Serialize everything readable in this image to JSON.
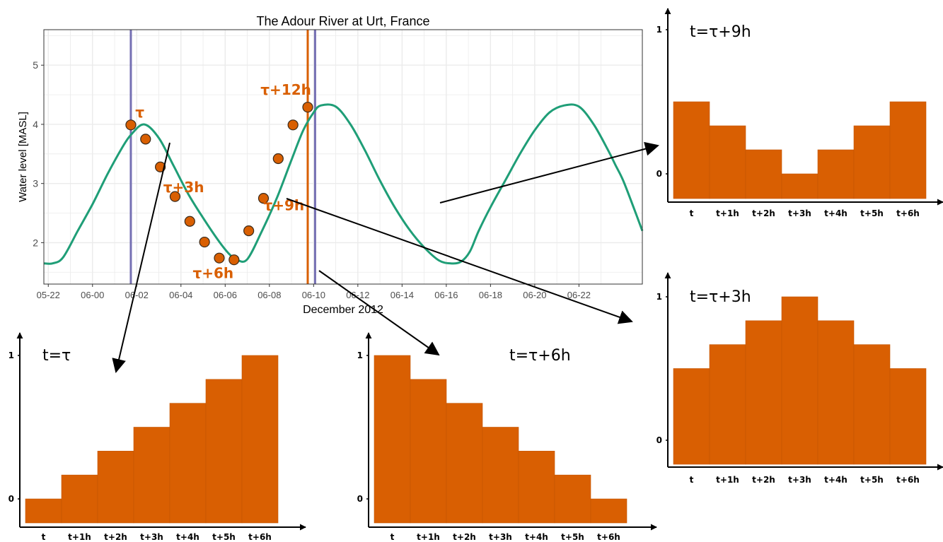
{
  "colors": {
    "line": "#1f9e77",
    "marker": "#d95f02",
    "bar": "#d95f02",
    "vline_blue": "#7570b3",
    "vline_orange": "#d95f02",
    "grid": "#ebebeb",
    "axis": "#000000"
  },
  "chart_data": [
    {
      "type": "line",
      "title": "The Adour River at Urt, France",
      "xlabel": "December 2012",
      "ylabel": "Water level [MASL]",
      "ylim": [
        1.3,
        5.6
      ],
      "yticks": [
        2,
        3,
        4,
        5
      ],
      "xticks": [
        "05-22",
        "06-00",
        "06-02",
        "06-04",
        "06-06",
        "06-08",
        "06-10",
        "06-12",
        "06-14",
        "06-16",
        "06-18",
        "06-20",
        "06-22"
      ],
      "xlim_hours": [
        -3.3,
        37.3
      ],
      "grid": true,
      "series": [
        {
          "kind": "line",
          "x": [
            -3.3,
            -2.7,
            -2,
            -1,
            0,
            1,
            2,
            2.6,
            3.5,
            4.5,
            5.5,
            6.5,
            7.5,
            8.5,
            9.3,
            9.8,
            10.5,
            11.5,
            12.5,
            13.5,
            14.3,
            15,
            15.5,
            16.5,
            17.5,
            18.5,
            19.5,
            20.5,
            21.5,
            22.5,
            23.5,
            24.3,
            25,
            25.6,
            26.2,
            27,
            28,
            29,
            30,
            31,
            32,
            33,
            34,
            35,
            35.5,
            36,
            36.7,
            37.3
          ],
          "y": [
            1.65,
            1.65,
            1.75,
            2.2,
            2.65,
            3.15,
            3.6,
            3.82,
            4.0,
            3.77,
            3.3,
            2.82,
            2.42,
            2.05,
            1.8,
            1.71,
            1.72,
            2.2,
            2.75,
            3.4,
            3.9,
            4.2,
            4.32,
            4.3,
            4.0,
            3.55,
            3.05,
            2.6,
            2.22,
            1.92,
            1.7,
            1.65,
            1.68,
            1.85,
            2.2,
            2.6,
            3.05,
            3.5,
            3.9,
            4.2,
            4.32,
            4.3,
            4.0,
            3.55,
            3.3,
            3.05,
            2.6,
            2.2
          ]
        },
        {
          "kind": "points",
          "x": [
            2.6,
            3.6,
            4.6,
            5.6,
            6.6,
            7.6,
            8.6,
            9.6,
            10.6,
            11.6,
            12.6,
            13.6,
            14.6
          ],
          "y": [
            3.99,
            3.75,
            3.28,
            2.78,
            2.36,
            2.01,
            1.74,
            1.71,
            2.2,
            2.75,
            3.42,
            3.99,
            4.29
          ]
        }
      ],
      "vlines": [
        {
          "x": 2.6,
          "color": "blue"
        },
        {
          "x": 14.6,
          "color": "orange"
        },
        {
          "x": 15.1,
          "color": "blue"
        }
      ],
      "annotations": [
        {
          "text": "τ",
          "x": 2.9,
          "y": 4.12
        },
        {
          "text": "τ+3h",
          "x": 4.8,
          "y": 2.85
        },
        {
          "text": "τ+6h",
          "x": 6.8,
          "y": 1.4
        },
        {
          "text": "τ+9h",
          "x": 11.6,
          "y": 2.55
        },
        {
          "text": "τ+12h",
          "x": 11.4,
          "y": 4.5
        }
      ]
    },
    {
      "type": "bar",
      "title": "t=τ",
      "categories": [
        "t",
        "t+1h",
        "t+2h",
        "t+3h",
        "t+4h",
        "t+5h",
        "t+6h"
      ],
      "values": [
        0,
        0.1667,
        0.3333,
        0.5,
        0.6667,
        0.8333,
        1
      ],
      "yticks": [
        0,
        1
      ]
    },
    {
      "type": "bar",
      "title": "t=τ+6h",
      "categories": [
        "t",
        "t+1h",
        "t+2h",
        "t+3h",
        "t+4h",
        "t+5h",
        "t+6h"
      ],
      "values": [
        1,
        0.8333,
        0.6667,
        0.5,
        0.3333,
        0.1667,
        0
      ],
      "yticks": [
        0,
        1
      ]
    },
    {
      "type": "bar",
      "title": "t=τ+9h",
      "categories": [
        "t",
        "t+1h",
        "t+2h",
        "t+3h",
        "t+4h",
        "t+5h",
        "t+6h"
      ],
      "values": [
        0.5,
        0.3333,
        0.1667,
        0,
        0.1667,
        0.3333,
        0.5
      ],
      "yticks": [
        0,
        1
      ]
    },
    {
      "type": "bar",
      "title": "t=τ+3h",
      "categories": [
        "t",
        "t+1h",
        "t+2h",
        "t+3h",
        "t+4h",
        "t+5h",
        "t+6h"
      ],
      "values": [
        0.5,
        0.6667,
        0.8333,
        1,
        0.8333,
        0.6667,
        0.5
      ],
      "yticks": [
        0,
        1
      ]
    }
  ]
}
